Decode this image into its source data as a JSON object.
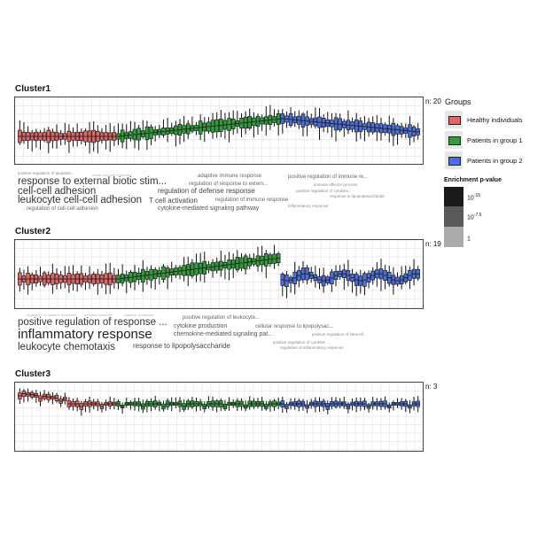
{
  "legend": {
    "title": "Groups",
    "items": [
      {
        "label": "Healthy individuals",
        "color": "#e06666"
      },
      {
        "label": "Patients in group 1",
        "color": "#2e9e3a"
      },
      {
        "label": "Patients in group 2",
        "color": "#4a6fdc"
      }
    ],
    "pvalue_title": "Enrichment p-value",
    "pvalue_labels": [
      {
        "base": "10",
        "exp": "-15"
      },
      {
        "base": "10",
        "exp": "-7.5"
      },
      {
        "base": "1",
        "exp": ""
      }
    ],
    "pvalue_colors": [
      "#1a1a1a",
      "#5a5a5a",
      "#aaaaaa"
    ]
  },
  "chart_data": [
    {
      "type": "box",
      "title": "Cluster1",
      "n_label": "n: 20",
      "groups": [
        {
          "name": "Healthy individuals",
          "count": 24
        },
        {
          "name": "Patients in group 1",
          "count": 40
        },
        {
          "name": "Patients in group 2",
          "count": 34
        }
      ],
      "terms": [
        {
          "text": "positive regulation of apoptotic...",
          "weight": 1
        },
        {
          "text": "innate immune response",
          "weight": 0
        },
        {
          "text": "response to external biotic stim...",
          "weight": 5
        },
        {
          "text": "adaptive immune response",
          "weight": 2
        },
        {
          "text": "positive regulation of immune re...",
          "weight": 2
        },
        {
          "text": "regulation of response to extern...",
          "weight": 2
        },
        {
          "text": "immune effector process",
          "weight": 1
        },
        {
          "text": "cell-cell adhesion",
          "weight": 5
        },
        {
          "text": "regulation of defense response",
          "weight": 4
        },
        {
          "text": "positive regulation of cytokine...",
          "weight": 1
        },
        {
          "text": "response to lipopolysaccharide",
          "weight": 1
        },
        {
          "text": "leukocyte cell-cell adhesion",
          "weight": 5
        },
        {
          "text": "T cell activation",
          "weight": 4
        },
        {
          "text": "regulation of immune response",
          "weight": 2
        },
        {
          "text": "regulation of cell-cell adhesion",
          "weight": 2
        },
        {
          "text": "cytokine-mediated signaling pathway",
          "weight": 3
        },
        {
          "text": "inflammatory response",
          "weight": 1
        }
      ]
    },
    {
      "type": "box",
      "title": "Cluster2",
      "n_label": "n: 19",
      "groups": [
        {
          "name": "Healthy individuals",
          "count": 24
        },
        {
          "name": "Patients in group 1",
          "count": 40
        },
        {
          "name": "Patients in group 2",
          "count": 34
        }
      ],
      "terms": [
        {
          "text": "regulation of cytokine biosynthe...",
          "weight": 0
        },
        {
          "text": "defense response",
          "weight": 0
        },
        {
          "text": "cytokine production",
          "weight": 0
        },
        {
          "text": "positive regulation of leukocyte...",
          "weight": 2
        },
        {
          "text": "positive regulation of response ...",
          "weight": 5
        },
        {
          "text": "cytokine production",
          "weight": 3
        },
        {
          "text": "cellular response to lipopolysac...",
          "weight": 2
        },
        {
          "text": "inflammatory response",
          "weight": 6
        },
        {
          "text": "chemokine-mediated signaling pat...",
          "weight": 3
        },
        {
          "text": "positive regulation of intracell...",
          "weight": 1
        },
        {
          "text": "positive regulation of cytokine ...",
          "weight": 1
        },
        {
          "text": "leukocyte chemotaxis",
          "weight": 5
        },
        {
          "text": "response to lipopolysaccharide",
          "weight": 4
        },
        {
          "text": "regulation of inflammatory response",
          "weight": 1
        }
      ]
    },
    {
      "type": "box",
      "title": "Cluster3",
      "n_label": "n: 3",
      "groups": [
        {
          "name": "Healthy individuals",
          "count": 24
        },
        {
          "name": "Patients in group 1",
          "count": 40
        },
        {
          "name": "Patients in group 2",
          "count": 34
        }
      ],
      "terms": []
    }
  ]
}
